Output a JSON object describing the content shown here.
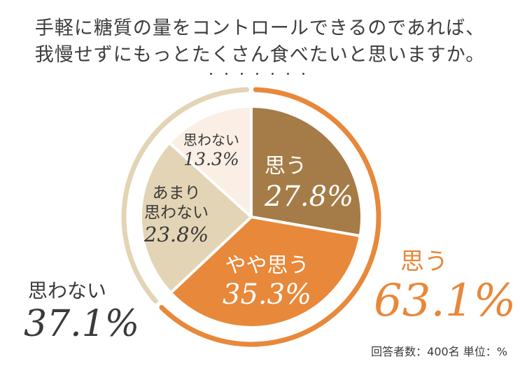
{
  "title_line1": "手軽に糖質の量をコントロールできるのであれば、",
  "title_line2": "我慢せずにもっとたくさん食べたいと思いますか。",
  "dots": "・・・・・・・",
  "chart_data": {
    "type": "pie",
    "categories": [
      "思う",
      "やや思う",
      "あまり思わない",
      "思わない"
    ],
    "values": [
      27.8,
      35.3,
      23.8,
      13.3
    ],
    "unit": "%",
    "colors": [
      "#a57c47",
      "#e8883a",
      "#e3d4b5",
      "#fbeee4"
    ],
    "slice_labels": [
      {
        "lines": [
          "思う"
        ],
        "value": "27.8%"
      },
      {
        "lines": [
          "やや思う"
        ],
        "value": "35.3%"
      },
      {
        "lines": [
          "あまり",
          "思わない"
        ],
        "value": "23.8%"
      },
      {
        "lines": [
          "思わない"
        ],
        "value": "13.3%"
      }
    ],
    "groups": [
      {
        "label": "思う",
        "value": "63.1%",
        "color": "#e8883a"
      },
      {
        "label": "思わない",
        "value": "37.1%",
        "color": "#e3d4b5"
      }
    ]
  },
  "note": "回答者数：400名 単位：%"
}
